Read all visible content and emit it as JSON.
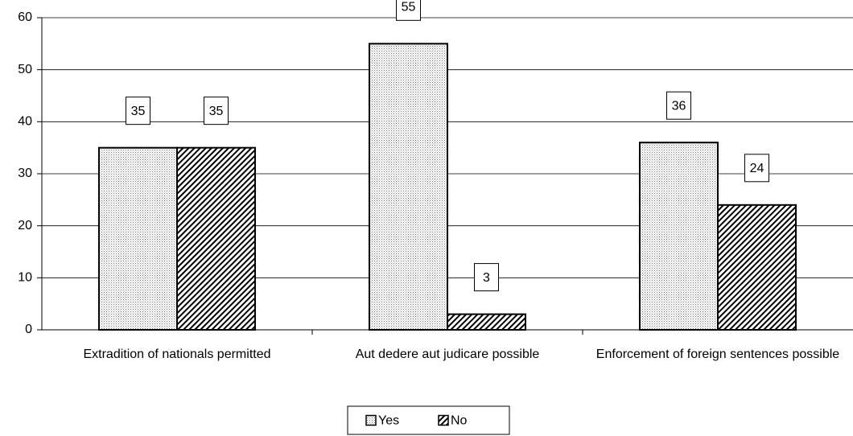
{
  "chart_data": {
    "type": "bar",
    "categories": [
      "Extradition of nationals permitted",
      "Aut dedere aut judicare possible",
      "Enforcement of foreign sentences possible"
    ],
    "series": [
      {
        "name": "Yes",
        "color": "#ffffff",
        "pattern": "dots",
        "values": [
          35,
          55,
          36
        ]
      },
      {
        "name": "No",
        "color": "#ffffff",
        "pattern": "hatch",
        "values": [
          35,
          3,
          24
        ]
      }
    ],
    "ylim": [
      0,
      60
    ],
    "yticks": [
      0,
      10,
      20,
      30,
      40,
      50,
      60
    ],
    "grid": true,
    "legend": "bottom"
  }
}
